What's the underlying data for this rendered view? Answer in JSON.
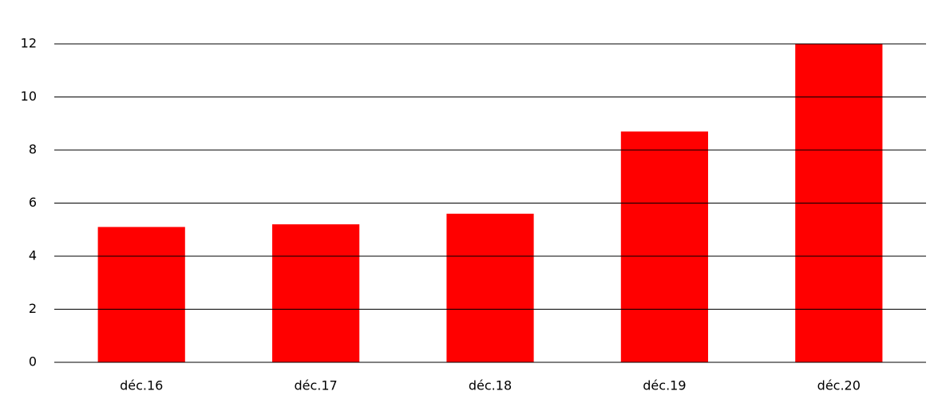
{
  "chart_data": {
    "type": "bar",
    "categories": [
      "déc.16",
      "déc.17",
      "déc.18",
      "déc.19",
      "déc.20"
    ],
    "values": [
      5.1,
      5.2,
      5.6,
      8.7,
      12
    ],
    "color": "#ff0000",
    "ylim": [
      0,
      12
    ],
    "yticks": [
      0,
      2,
      4,
      6,
      8,
      10,
      12
    ],
    "grid": true
  }
}
